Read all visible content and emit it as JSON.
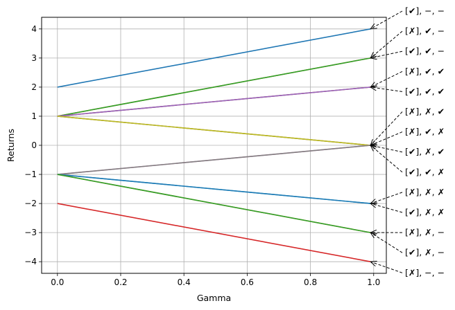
{
  "chart_data": {
    "type": "line",
    "xlabel": "Gamma",
    "ylabel": "Returns",
    "xlim": [
      -0.05,
      1.04
    ],
    "ylim": [
      -4.4,
      4.4
    ],
    "grid": true,
    "x_ticks": [
      0.0,
      0.2,
      0.4,
      0.6,
      0.8,
      1.0
    ],
    "x_tick_labels": [
      "0.0",
      "0.2",
      "0.4",
      "0.6",
      "0.8",
      "1.0"
    ],
    "y_ticks": [
      -4,
      -3,
      -2,
      -1,
      0,
      1,
      2,
      3,
      4
    ],
    "y_tick_labels": [
      "−4",
      "−3",
      "−2",
      "−1",
      "0",
      "1",
      "2",
      "3",
      "4"
    ],
    "series": [
      {
        "color": "#1f77b4",
        "x": [
          0.0,
          0.99
        ],
        "y": [
          2,
          4
        ]
      },
      {
        "color": "#ff7f0e",
        "x": [
          0.0,
          0.99
        ],
        "y": [
          1,
          3
        ]
      },
      {
        "color": "#2ca02c",
        "x": [
          0.0,
          0.99
        ],
        "y": [
          1,
          3
        ]
      },
      {
        "color": "#d62728",
        "x": [
          0.0,
          0.99
        ],
        "y": [
          1,
          2
        ]
      },
      {
        "color": "#9467bd",
        "x": [
          0.0,
          0.99
        ],
        "y": [
          1,
          2
        ]
      },
      {
        "color": "#8c564b",
        "x": [
          0.0,
          0.99
        ],
        "y": [
          1,
          0
        ]
      },
      {
        "color": "#bcbd22",
        "x": [
          0.0,
          0.99
        ],
        "y": [
          1,
          0
        ]
      },
      {
        "color": "#e377c2",
        "x": [
          0.0,
          0.99
        ],
        "y": [
          -1,
          0
        ]
      },
      {
        "color": "#7f7f7f",
        "x": [
          0.0,
          0.99
        ],
        "y": [
          -1,
          0
        ]
      },
      {
        "color": "#17becf",
        "x": [
          0.0,
          0.99
        ],
        "y": [
          -1,
          -2
        ]
      },
      {
        "color": "#1f77b4",
        "x": [
          0.0,
          0.99
        ],
        "y": [
          -1,
          -2
        ]
      },
      {
        "color": "#ff7f0e",
        "x": [
          0.0,
          0.99
        ],
        "y": [
          -1,
          -3
        ]
      },
      {
        "color": "#2ca02c",
        "x": [
          0.0,
          0.99
        ],
        "y": [
          -1,
          -3
        ]
      },
      {
        "color": "#d62728",
        "x": [
          0.0,
          0.99
        ],
        "y": [
          -2,
          -4
        ]
      }
    ],
    "annotations": [
      {
        "text": "[✔], −, −",
        "target": [
          0.99,
          4
        ]
      },
      {
        "text": "[✗], ✔, −",
        "target": [
          0.99,
          3
        ]
      },
      {
        "text": "[✔], ✔, −",
        "target": [
          0.99,
          3
        ]
      },
      {
        "text": "[✗], ✔, ✔",
        "target": [
          0.99,
          2
        ]
      },
      {
        "text": "[✔], ✔, ✔",
        "target": [
          0.99,
          2
        ]
      },
      {
        "text": "[✗], ✗, ✔",
        "target": [
          0.99,
          0
        ]
      },
      {
        "text": "[✗], ✔, ✗",
        "target": [
          0.99,
          0
        ]
      },
      {
        "text": "[✔], ✗, ✔",
        "target": [
          0.99,
          0
        ]
      },
      {
        "text": "[✔], ✔, ✗",
        "target": [
          0.99,
          0
        ]
      },
      {
        "text": "[✗], ✗, ✗",
        "target": [
          0.99,
          -2
        ]
      },
      {
        "text": "[✔], ✗, ✗",
        "target": [
          0.99,
          -2
        ]
      },
      {
        "text": "[✗], ✗, −",
        "target": [
          0.99,
          -3
        ]
      },
      {
        "text": "[✔], ✗, −",
        "target": [
          0.99,
          -3
        ]
      },
      {
        "text": "[✗], −, −",
        "target": [
          0.99,
          -4
        ]
      }
    ]
  }
}
